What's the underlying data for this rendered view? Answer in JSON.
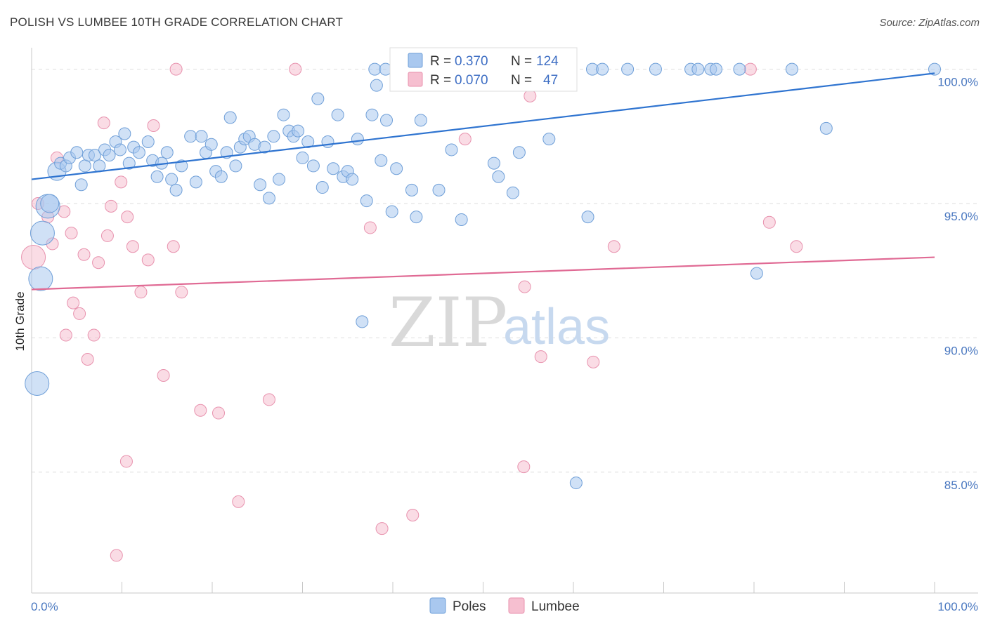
{
  "header": {
    "title": "POLISH VS LUMBEE 10TH GRADE CORRELATION CHART",
    "source": "Source: ZipAtlas.com"
  },
  "legend": {
    "poles": {
      "r_label": "R =",
      "r_value": "0.370",
      "n_label": "N =",
      "n_value": "124"
    },
    "lumbee": {
      "r_label": "R =",
      "r_value": "0.070",
      "n_label": "N =",
      "n_value": "47"
    }
  },
  "bottom_legend": {
    "poles": "Poles",
    "lumbee": "Lumbee"
  },
  "watermark": {
    "zip": "ZIP",
    "atlas": "atlas"
  },
  "colors": {
    "poles_fill": "#a9c8ef",
    "poles_stroke": "#6f9fd8",
    "poles_line": "#2f74d0",
    "lumbee_fill": "#f6bfd0",
    "lumbee_stroke": "#e892ae",
    "lumbee_line": "#e06a94",
    "grid": "#dedede",
    "axis_text": "#4a78c0"
  },
  "chart_data": {
    "type": "scatter",
    "title": "POLISH VS LUMBEE 10TH GRADE CORRELATION CHART",
    "xlabel": "",
    "ylabel": "10th Grade",
    "xlim": [
      0,
      100
    ],
    "ylim": [
      80.5,
      100.8
    ],
    "x_tick_labels": [
      "0.0%",
      "100.0%"
    ],
    "y_ticks": [
      85,
      90,
      95,
      100
    ],
    "y_tick_labels": [
      "85.0%",
      "90.0%",
      "95.0%",
      "100.0%"
    ],
    "grid": true,
    "legend_position": "top-center",
    "series": [
      {
        "name": "Poles",
        "R": 0.37,
        "N": 124,
        "trend": {
          "x": [
            0,
            100
          ],
          "y": [
            95.9,
            99.85
          ]
        },
        "points": [
          [
            1.8,
            94.9,
            2
          ],
          [
            1.2,
            93.9,
            2
          ],
          [
            1.0,
            92.2,
            2
          ],
          [
            0.6,
            88.3,
            2
          ],
          [
            2.0,
            95.0,
            1.5
          ],
          [
            2.8,
            96.2,
            1.5
          ],
          [
            3.2,
            96.5,
            1
          ],
          [
            3.8,
            96.4,
            1
          ],
          [
            4.2,
            96.7,
            1
          ],
          [
            5.0,
            96.9,
            1
          ],
          [
            5.5,
            95.7,
            1
          ],
          [
            5.9,
            96.4,
            1
          ],
          [
            6.3,
            96.8,
            1
          ],
          [
            7.0,
            96.8,
            1
          ],
          [
            7.5,
            96.4,
            1
          ],
          [
            8.1,
            97.0,
            1
          ],
          [
            8.6,
            96.8,
            1
          ],
          [
            9.3,
            97.3,
            1
          ],
          [
            9.8,
            97.0,
            1
          ],
          [
            10.3,
            97.6,
            1
          ],
          [
            10.8,
            96.5,
            1
          ],
          [
            11.3,
            97.1,
            1
          ],
          [
            11.9,
            96.9,
            1
          ],
          [
            12.9,
            97.3,
            1
          ],
          [
            13.4,
            96.6,
            1
          ],
          [
            13.9,
            96.0,
            1
          ],
          [
            14.4,
            96.5,
            1
          ],
          [
            15.0,
            96.9,
            1
          ],
          [
            15.5,
            95.9,
            1
          ],
          [
            16.0,
            95.5,
            1
          ],
          [
            16.6,
            96.4,
            1
          ],
          [
            17.6,
            97.5,
            1
          ],
          [
            18.2,
            95.8,
            1
          ],
          [
            18.8,
            97.5,
            1
          ],
          [
            19.3,
            96.9,
            1
          ],
          [
            19.9,
            97.2,
            1
          ],
          [
            20.4,
            96.2,
            1
          ],
          [
            21.0,
            96.0,
            1
          ],
          [
            21.6,
            96.9,
            1
          ],
          [
            22.0,
            98.2,
            1
          ],
          [
            22.6,
            96.4,
            1
          ],
          [
            23.1,
            97.1,
            1
          ],
          [
            23.6,
            97.4,
            1
          ],
          [
            24.1,
            97.5,
            1
          ],
          [
            24.7,
            97.2,
            1
          ],
          [
            25.3,
            95.7,
            1
          ],
          [
            25.8,
            97.1,
            1
          ],
          [
            26.3,
            95.2,
            1
          ],
          [
            26.8,
            97.5,
            1
          ],
          [
            27.4,
            95.9,
            1
          ],
          [
            27.9,
            98.3,
            1
          ],
          [
            28.5,
            97.7,
            1
          ],
          [
            29.0,
            97.5,
            1
          ],
          [
            29.5,
            97.7,
            1
          ],
          [
            30.0,
            96.7,
            1
          ],
          [
            30.6,
            97.3,
            1
          ],
          [
            31.2,
            96.4,
            1
          ],
          [
            31.7,
            98.9,
            1
          ],
          [
            32.2,
            95.6,
            1
          ],
          [
            32.8,
            97.3,
            1
          ],
          [
            33.4,
            96.3,
            1
          ],
          [
            33.9,
            98.3,
            1
          ],
          [
            34.5,
            96.0,
            1
          ],
          [
            35.0,
            96.2,
            1
          ],
          [
            35.5,
            95.9,
            1
          ],
          [
            36.1,
            97.4,
            1
          ],
          [
            36.6,
            90.6,
            1
          ],
          [
            37.1,
            95.1,
            1
          ],
          [
            37.7,
            98.3,
            1
          ],
          [
            38.2,
            99.4,
            1
          ],
          [
            38.7,
            96.6,
            1
          ],
          [
            39.3,
            98.1,
            1
          ],
          [
            39.9,
            94.7,
            1
          ],
          [
            40.4,
            96.3,
            1
          ],
          [
            41.0,
            99.5,
            1
          ],
          [
            42.1,
            95.5,
            1
          ],
          [
            42.6,
            94.5,
            1
          ],
          [
            43.1,
            98.1,
            1
          ],
          [
            45.1,
            95.5,
            1
          ],
          [
            46.5,
            97.0,
            1
          ],
          [
            47.6,
            94.4,
            1
          ],
          [
            51.2,
            96.5,
            1
          ],
          [
            51.7,
            96.0,
            1
          ],
          [
            53.3,
            95.4,
            1
          ],
          [
            54.0,
            96.9,
            1
          ],
          [
            57.3,
            97.4,
            1
          ],
          [
            60.3,
            84.6,
            1
          ],
          [
            61.6,
            94.5,
            1
          ],
          [
            88.0,
            97.8,
            1
          ],
          [
            80.3,
            92.4,
            1
          ],
          [
            38.0,
            100.0,
            1
          ],
          [
            39.2,
            100.0,
            1
          ],
          [
            41.5,
            100.0,
            1
          ],
          [
            42.8,
            100.0,
            1
          ],
          [
            44.0,
            100.0,
            1
          ],
          [
            45.3,
            100.0,
            1
          ],
          [
            46.6,
            100.0,
            1
          ],
          [
            47.9,
            100.0,
            1
          ],
          [
            49.2,
            100.0,
            1
          ],
          [
            50.5,
            100.0,
            1
          ],
          [
            53.5,
            100.0,
            1
          ],
          [
            55.0,
            100.0,
            1
          ],
          [
            56.0,
            100.0,
            1
          ],
          [
            59.2,
            100.0,
            1
          ],
          [
            62.1,
            100.0,
            1
          ],
          [
            63.2,
            100.0,
            1
          ],
          [
            66.0,
            100.0,
            1
          ],
          [
            69.1,
            100.0,
            1
          ],
          [
            73.0,
            100.0,
            1
          ],
          [
            73.8,
            100.0,
            1
          ],
          [
            75.2,
            100.0,
            1
          ],
          [
            75.8,
            100.0,
            1
          ],
          [
            78.4,
            100.0,
            1
          ],
          [
            84.2,
            100.0,
            1
          ],
          [
            100.0,
            100.0,
            1
          ]
        ]
      },
      {
        "name": "Lumbee",
        "R": 0.07,
        "N": 47,
        "trend": {
          "x": [
            0,
            100
          ],
          "y": [
            91.8,
            93.0
          ]
        },
        "points": [
          [
            0.2,
            93.0,
            2
          ],
          [
            0.7,
            95.0,
            1
          ],
          [
            1.8,
            94.5,
            1
          ],
          [
            2.8,
            96.7,
            1
          ],
          [
            3.6,
            94.7,
            1
          ],
          [
            2.3,
            93.5,
            1
          ],
          [
            4.4,
            93.9,
            1
          ],
          [
            4.6,
            91.3,
            1
          ],
          [
            5.3,
            90.9,
            1
          ],
          [
            5.8,
            93.1,
            1
          ],
          [
            3.8,
            90.1,
            1
          ],
          [
            6.2,
            89.2,
            1
          ],
          [
            6.9,
            90.1,
            1
          ],
          [
            7.4,
            92.8,
            1
          ],
          [
            8.0,
            98.0,
            1
          ],
          [
            8.4,
            93.8,
            1
          ],
          [
            8.8,
            94.9,
            1
          ],
          [
            9.4,
            81.9,
            1
          ],
          [
            9.9,
            95.8,
            1
          ],
          [
            10.5,
            85.4,
            1
          ],
          [
            10.6,
            94.5,
            1
          ],
          [
            11.2,
            93.4,
            1
          ],
          [
            12.1,
            91.7,
            1
          ],
          [
            12.9,
            92.9,
            1
          ],
          [
            13.5,
            97.9,
            1
          ],
          [
            14.6,
            88.6,
            1
          ],
          [
            15.7,
            93.4,
            1
          ],
          [
            16.6,
            91.7,
            1
          ],
          [
            18.7,
            87.3,
            1
          ],
          [
            20.7,
            87.2,
            1
          ],
          [
            22.9,
            83.9,
            1
          ],
          [
            26.3,
            87.7,
            1
          ],
          [
            29.2,
            100.0,
            1
          ],
          [
            37.5,
            94.1,
            1
          ],
          [
            38.8,
            82.9,
            1
          ],
          [
            42.2,
            83.4,
            1
          ],
          [
            48.0,
            97.4,
            1
          ],
          [
            54.6,
            91.9,
            1
          ],
          [
            54.5,
            85.2,
            1
          ],
          [
            55.2,
            99.0,
            1
          ],
          [
            56.4,
            89.3,
            1
          ],
          [
            62.2,
            89.1,
            1
          ],
          [
            64.5,
            93.4,
            1
          ],
          [
            81.7,
            94.3,
            1
          ],
          [
            84.7,
            93.4,
            1
          ],
          [
            79.6,
            100.0,
            1
          ],
          [
            16.0,
            100.0,
            1
          ]
        ]
      }
    ]
  }
}
